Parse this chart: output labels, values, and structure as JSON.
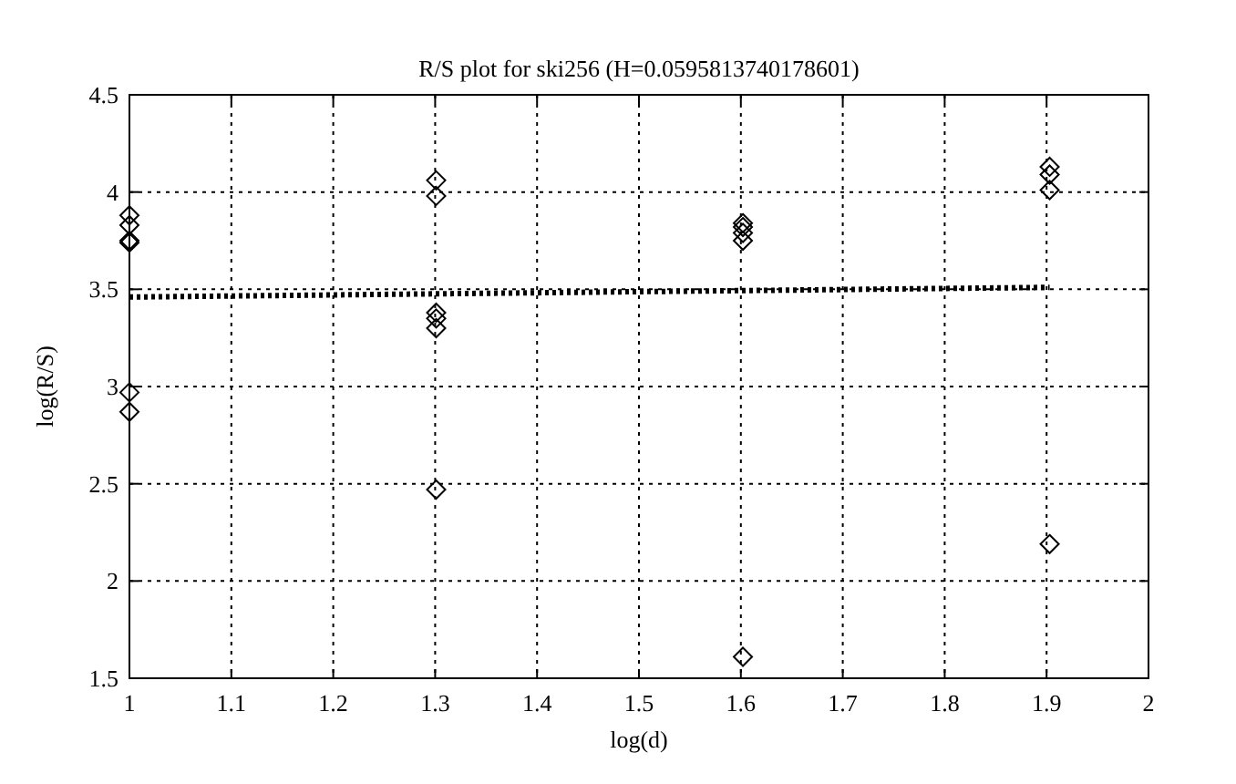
{
  "chart_data": {
    "type": "scatter",
    "title": "R/S plot for ski256 (H=0.0595813740178601)",
    "xlabel": "log(d)",
    "ylabel": "log(R/S)",
    "xlim": [
      1,
      2
    ],
    "xticks": [
      1,
      1.1,
      1.2,
      1.3,
      1.4,
      1.5,
      1.6,
      1.7,
      1.8,
      1.9,
      2
    ],
    "ylim": [
      1.5,
      4.5
    ],
    "yticks": [
      1.5,
      2,
      2.5,
      3,
      3.5,
      4,
      4.5
    ],
    "grid": true,
    "marker": "diamond",
    "series": [
      {
        "color": "#000000",
        "x": [
          1,
          1,
          1,
          1,
          1,
          1,
          1.301,
          1.301,
          1.301,
          1.301,
          1.301,
          1.301,
          1.602,
          1.602,
          1.602,
          1.602,
          1.602,
          1.903,
          1.903,
          1.903,
          1.903
        ],
        "values": [
          3.88,
          3.83,
          3.75,
          3.74,
          2.97,
          2.87,
          4.06,
          3.98,
          3.38,
          3.35,
          3.3,
          2.47,
          3.84,
          3.82,
          3.79,
          3.75,
          1.61,
          4.13,
          4.09,
          4.01,
          2.19
        ]
      },
      {
        "type": "line",
        "color": "#000000",
        "line_style": "dotted",
        "marker": "none",
        "x": [
          1,
          1.903
        ],
        "values": [
          3.46,
          3.51
        ]
      }
    ]
  }
}
